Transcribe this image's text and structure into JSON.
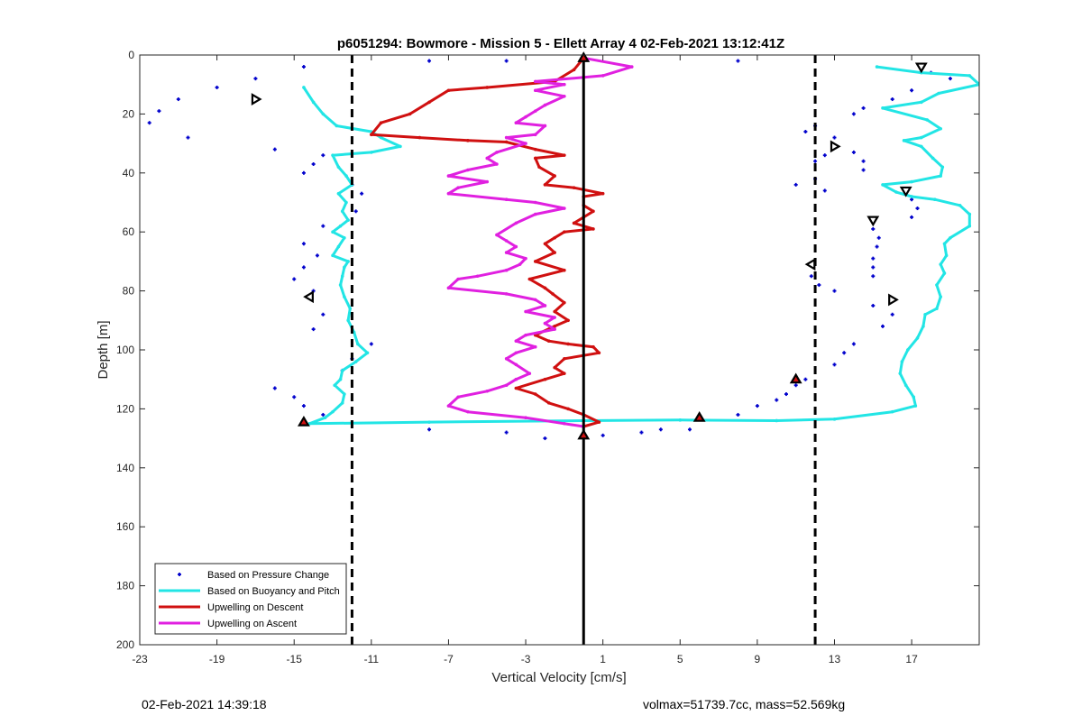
{
  "chart_data": {
    "type": "line",
    "title": "p6051294: Bowmore - Mission 5 - Ellett Array 4 02-Feb-2021 13:12:41Z",
    "xlabel": "Vertical Velocity [cm/s]",
    "ylabel": "Depth [m]",
    "xlim": [
      -23,
      20.5
    ],
    "ylim": [
      0,
      200
    ],
    "y_reversed": true,
    "xticks": [
      -23,
      -19,
      -15,
      -11,
      -7,
      -3,
      1,
      5,
      9,
      13,
      17
    ],
    "yticks": [
      0,
      20,
      40,
      60,
      80,
      100,
      120,
      140,
      160,
      180,
      200
    ],
    "grid": false,
    "legend_position": "bottom-left",
    "reference_lines": {
      "zero_line_x": 0,
      "dashed_lines_x": [
        -12,
        12
      ]
    },
    "series": [
      {
        "name": "Based on Pressure Change",
        "style": "points",
        "color": "#0000cc",
        "points": [
          [
            -14.5,
            4
          ],
          [
            -17,
            8
          ],
          [
            -19,
            11
          ],
          [
            -21,
            15
          ],
          [
            -22,
            19
          ],
          [
            -22.5,
            23
          ],
          [
            -20.5,
            28
          ],
          [
            -16,
            32
          ],
          [
            -13.5,
            34
          ],
          [
            -14,
            37
          ],
          [
            -14.5,
            40
          ],
          [
            -12,
            44
          ],
          [
            -11.5,
            47
          ],
          [
            -11.8,
            53
          ],
          [
            -13.5,
            58
          ],
          [
            -14.5,
            64
          ],
          [
            -13.8,
            68
          ],
          [
            -14.5,
            72
          ],
          [
            -15,
            76
          ],
          [
            -14,
            80
          ],
          [
            -13.5,
            88
          ],
          [
            -14,
            93
          ],
          [
            -11,
            98
          ],
          [
            -12,
            103
          ],
          [
            -12.5,
            107
          ],
          [
            -16,
            113
          ],
          [
            -15,
            116
          ],
          [
            -14.5,
            119
          ],
          [
            -13.5,
            122
          ],
          [
            -8,
            127
          ],
          [
            -4,
            128
          ],
          [
            -2,
            130
          ],
          [
            1,
            129
          ],
          [
            3,
            128
          ],
          [
            4,
            127
          ],
          [
            5.5,
            127
          ],
          [
            8,
            122
          ],
          [
            9,
            119
          ],
          [
            10,
            117
          ],
          [
            10.5,
            115
          ],
          [
            11,
            112
          ],
          [
            11.5,
            110
          ],
          [
            13,
            105
          ],
          [
            13.5,
            101
          ],
          [
            14,
            98
          ],
          [
            15.5,
            92
          ],
          [
            16,
            88
          ],
          [
            15,
            85
          ],
          [
            13,
            80
          ],
          [
            12.2,
            78
          ],
          [
            11.8,
            75
          ],
          [
            15,
            75
          ],
          [
            15,
            72
          ],
          [
            15,
            69
          ],
          [
            15.2,
            65
          ],
          [
            15.3,
            62
          ],
          [
            15,
            59
          ],
          [
            17,
            55
          ],
          [
            17.3,
            52
          ],
          [
            17,
            49
          ],
          [
            12.5,
            46
          ],
          [
            12,
            42
          ],
          [
            11,
            44
          ],
          [
            12,
            36
          ],
          [
            12.5,
            34
          ],
          [
            14,
            33
          ],
          [
            14.5,
            36
          ],
          [
            14.5,
            39
          ],
          [
            11.5,
            26
          ],
          [
            12,
            24
          ],
          [
            13,
            28
          ],
          [
            14,
            20
          ],
          [
            14.5,
            18
          ],
          [
            16,
            15
          ],
          [
            17,
            12
          ],
          [
            18,
            6
          ],
          [
            19,
            8
          ],
          [
            8,
            2
          ],
          [
            -4,
            2
          ],
          [
            -8,
            2
          ]
        ]
      },
      {
        "name": "Based on Buoyancy and Pitch",
        "style": "line",
        "color": "#22e5e5",
        "points": [
          [
            -14.5,
            11
          ],
          [
            -14,
            16
          ],
          [
            -13.5,
            20
          ],
          [
            -12.8,
            24
          ],
          [
            -11,
            26
          ],
          [
            -10.5,
            28
          ],
          [
            -9.5,
            31
          ],
          [
            -11,
            33
          ],
          [
            -13,
            34
          ],
          [
            -12.7,
            38
          ],
          [
            -12.3,
            41
          ],
          [
            -12,
            44
          ],
          [
            -12.7,
            47
          ],
          [
            -12.3,
            50
          ],
          [
            -12.5,
            53
          ],
          [
            -12.2,
            56
          ],
          [
            -12.6,
            58
          ],
          [
            -13,
            60
          ],
          [
            -12.4,
            62
          ],
          [
            -12.7,
            65
          ],
          [
            -13,
            68
          ],
          [
            -12.2,
            70
          ],
          [
            -12.4,
            72
          ],
          [
            -12.5,
            75
          ],
          [
            -12.6,
            78
          ],
          [
            -12.4,
            82
          ],
          [
            -12.1,
            86
          ],
          [
            -12.2,
            90
          ],
          [
            -11.9,
            94
          ],
          [
            -11.7,
            98
          ],
          [
            -11.2,
            101
          ],
          [
            -11.8,
            104
          ],
          [
            -12.5,
            107
          ],
          [
            -12.6,
            110
          ],
          [
            -12.9,
            112
          ],
          [
            -12.4,
            115
          ],
          [
            -12.5,
            118
          ],
          [
            -13,
            121
          ],
          [
            -13.4,
            123
          ],
          [
            -14.2,
            125
          ],
          [
            -8,
            124.5
          ],
          [
            0,
            124
          ],
          [
            5,
            123.8
          ],
          [
            10,
            124
          ],
          [
            13,
            123.5
          ],
          [
            16,
            121
          ],
          [
            17.2,
            119
          ],
          [
            17.1,
            116
          ],
          [
            16.7,
            112
          ],
          [
            16.4,
            108
          ],
          [
            16.5,
            104
          ],
          [
            16.8,
            100
          ],
          [
            17.3,
            96
          ],
          [
            17.6,
            92
          ],
          [
            17.7,
            88
          ],
          [
            18.3,
            86
          ],
          [
            18.5,
            82
          ],
          [
            18.3,
            78
          ],
          [
            18.7,
            74
          ],
          [
            18.5,
            71
          ],
          [
            18.8,
            68
          ],
          [
            18.7,
            64
          ],
          [
            19,
            62
          ],
          [
            20,
            58
          ],
          [
            20,
            54
          ],
          [
            19.5,
            51
          ],
          [
            18.2,
            49
          ],
          [
            17,
            48
          ],
          [
            16.2,
            46.5
          ],
          [
            15.5,
            44
          ],
          [
            17,
            43
          ],
          [
            18.5,
            41
          ],
          [
            18.6,
            38
          ],
          [
            18.1,
            35
          ],
          [
            17.5,
            31
          ],
          [
            16.6,
            29
          ],
          [
            17.5,
            28
          ],
          [
            18.5,
            25
          ],
          [
            17.8,
            22
          ],
          [
            15.5,
            18
          ],
          [
            17.5,
            16
          ],
          [
            18.4,
            13
          ],
          [
            20.5,
            10
          ],
          [
            20,
            7
          ],
          [
            17.5,
            6
          ],
          [
            15.2,
            4
          ]
        ]
      },
      {
        "name": "Upwelling on Descent",
        "style": "line",
        "color": "#d01010",
        "points": [
          [
            0,
            1
          ],
          [
            -0.5,
            5
          ],
          [
            -1.5,
            9
          ],
          [
            -5,
            11
          ],
          [
            -7,
            12
          ],
          [
            -8,
            16
          ],
          [
            -9,
            20
          ],
          [
            -10.5,
            23
          ],
          [
            -11,
            27
          ],
          [
            -8.5,
            28
          ],
          [
            -6,
            29
          ],
          [
            -4,
            29.5
          ],
          [
            -2.5,
            32
          ],
          [
            -1,
            34
          ],
          [
            -2.5,
            35
          ],
          [
            -2.3,
            38
          ],
          [
            -1.5,
            41
          ],
          [
            -2,
            44
          ],
          [
            -0.5,
            45
          ],
          [
            1,
            47
          ],
          [
            0,
            48
          ],
          [
            0,
            51
          ],
          [
            0.5,
            53
          ],
          [
            0,
            55
          ],
          [
            -0.5,
            57
          ],
          [
            0.5,
            59
          ],
          [
            -1,
            60
          ],
          [
            -1.5,
            62
          ],
          [
            -2,
            64
          ],
          [
            -1.5,
            67
          ],
          [
            -2.5,
            70
          ],
          [
            -1,
            73
          ],
          [
            -2.8,
            76
          ],
          [
            -2,
            79
          ],
          [
            -1.6,
            81
          ],
          [
            -1,
            84
          ],
          [
            -1.5,
            87
          ],
          [
            -0.8,
            90
          ],
          [
            -1.5,
            92
          ],
          [
            -2.5,
            95
          ],
          [
            -1.8,
            97
          ],
          [
            -0.8,
            98
          ],
          [
            0.5,
            99
          ],
          [
            0.8,
            101
          ],
          [
            -1,
            103
          ],
          [
            -1.5,
            106
          ],
          [
            -1,
            108
          ],
          [
            -2,
            110
          ],
          [
            -3.5,
            113
          ],
          [
            -2.5,
            115
          ],
          [
            -1.8,
            118
          ],
          [
            -0.8,
            120
          ],
          [
            0,
            122
          ],
          [
            0.8,
            124.5
          ],
          [
            0,
            126
          ]
        ]
      },
      {
        "name": "Upwelling on Ascent",
        "style": "line",
        "color": "#e020e0",
        "points": [
          [
            0,
            1
          ],
          [
            2.5,
            4
          ],
          [
            1,
            7
          ],
          [
            -2.5,
            9
          ],
          [
            -1,
            10
          ],
          [
            -2.5,
            12
          ],
          [
            -1,
            14
          ],
          [
            -2,
            17
          ],
          [
            -2.5,
            19
          ],
          [
            -3,
            21
          ],
          [
            -3.5,
            23
          ],
          [
            -2,
            24
          ],
          [
            -2.5,
            27
          ],
          [
            -4,
            28
          ],
          [
            -3,
            30
          ],
          [
            -4.5,
            33
          ],
          [
            -5,
            35
          ],
          [
            -4.5,
            37
          ],
          [
            -6,
            39
          ],
          [
            -7,
            41
          ],
          [
            -5,
            43
          ],
          [
            -6.5,
            45
          ],
          [
            -7,
            47
          ],
          [
            -4,
            49
          ],
          [
            -2.5,
            50
          ],
          [
            -1,
            52
          ],
          [
            -2.5,
            54
          ],
          [
            -3.5,
            57
          ],
          [
            -4.5,
            61
          ],
          [
            -4,
            63
          ],
          [
            -3.5,
            65
          ],
          [
            -4,
            67
          ],
          [
            -3,
            69
          ],
          [
            -3.3,
            71
          ],
          [
            -4,
            73
          ],
          [
            -5.5,
            75
          ],
          [
            -6.5,
            76
          ],
          [
            -7,
            79
          ],
          [
            -4,
            81
          ],
          [
            -2.5,
            83
          ],
          [
            -2,
            85
          ],
          [
            -3,
            87
          ],
          [
            -1.5,
            89
          ],
          [
            -2,
            91
          ],
          [
            -1.5,
            93
          ],
          [
            -3,
            95
          ],
          [
            -3.5,
            97
          ],
          [
            -2.5,
            99
          ],
          [
            -3.5,
            101
          ],
          [
            -4,
            103
          ],
          [
            -3.5,
            105
          ],
          [
            -2.8,
            108
          ],
          [
            -3.5,
            110
          ],
          [
            -4,
            112
          ],
          [
            -5,
            114
          ],
          [
            -6.5,
            116
          ],
          [
            -7,
            119
          ],
          [
            -6,
            121
          ],
          [
            -3,
            123
          ],
          [
            -1,
            125
          ],
          [
            0,
            126
          ]
        ]
      }
    ],
    "markers": [
      {
        "shape": "triangle-down",
        "x": 17.5,
        "y": 4
      },
      {
        "shape": "triangle-right",
        "x": -17,
        "y": 15
      },
      {
        "shape": "triangle-right",
        "x": 13,
        "y": 31
      },
      {
        "shape": "triangle-down",
        "x": 16.7,
        "y": 46
      },
      {
        "shape": "triangle-down",
        "x": 15,
        "y": 56
      },
      {
        "shape": "triangle-left",
        "x": 11.8,
        "y": 71
      },
      {
        "shape": "triangle-left",
        "x": -14.2,
        "y": 82
      },
      {
        "shape": "triangle-right",
        "x": 16,
        "y": 83
      },
      {
        "shape": "triangle-up-filled",
        "x": 6,
        "y": 123
      },
      {
        "shape": "triangle-up-filled",
        "x": -14.5,
        "y": 124.5
      },
      {
        "shape": "triangle-up-filled",
        "x": 11,
        "y": 110
      },
      {
        "shape": "triangle-up-filled",
        "x": 0,
        "y": 1
      },
      {
        "shape": "triangle-up-filled",
        "x": 0,
        "y": 129
      }
    ]
  },
  "footer": {
    "timestamp": "02-Feb-2021 14:39:18",
    "info": "volmax=51739.7cc, mass=52.569kg"
  }
}
